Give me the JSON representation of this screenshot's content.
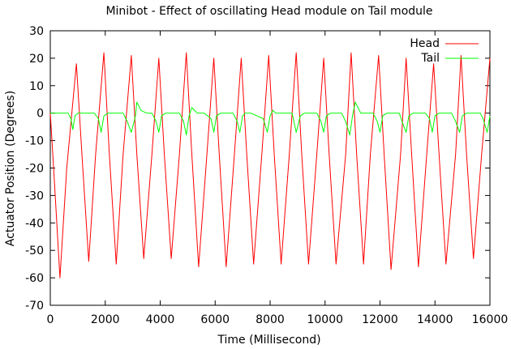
{
  "chart_data": {
    "type": "line",
    "title": "Minibot - Effect of oscillating Head module on Tail module",
    "xlabel": "Time (Millisecond)",
    "ylabel": "Actuator Position (Degrees)",
    "xlim": [
      0,
      16000
    ],
    "ylim": [
      -70,
      30
    ],
    "x_ticks": [
      0,
      2000,
      4000,
      6000,
      8000,
      10000,
      12000,
      14000,
      16000
    ],
    "y_ticks": [
      -70,
      -60,
      -50,
      -40,
      -30,
      -20,
      -10,
      0,
      10,
      20,
      30
    ],
    "grid": false,
    "legend_position": "top-right",
    "series": [
      {
        "name": "Head",
        "color": "#ff0000",
        "x": [
          0,
          150,
          350,
          600,
          950,
          1150,
          1400,
          1650,
          1950,
          2150,
          2400,
          2650,
          2950,
          3150,
          3400,
          3700,
          3950,
          4150,
          4400,
          4700,
          4950,
          5150,
          5400,
          5700,
          5950,
          6150,
          6400,
          6700,
          6950,
          7150,
          7400,
          7700,
          7950,
          8150,
          8400,
          8700,
          8950,
          9150,
          9400,
          9700,
          9950,
          10150,
          10400,
          10750,
          10950,
          11150,
          11400,
          11650,
          11950,
          12150,
          12400,
          12750,
          12950,
          13150,
          13400,
          13700,
          13950,
          14150,
          14400,
          14750,
          14950,
          15150,
          15400,
          15700,
          16000
        ],
        "values": [
          0,
          -25,
          -60,
          -20,
          18,
          -15,
          -54,
          -15,
          22,
          -15,
          -55,
          -15,
          21,
          -15,
          -53,
          -15,
          20,
          -15,
          -53,
          -15,
          22,
          -15,
          -56,
          -15,
          20,
          -15,
          -56,
          -15,
          20,
          -15,
          -55,
          -15,
          21,
          -15,
          -55,
          -15,
          22,
          -15,
          -55,
          -15,
          20,
          -15,
          -55,
          -15,
          22,
          -15,
          -55,
          -15,
          21,
          -15,
          -57,
          -15,
          20,
          -15,
          -56,
          -15,
          18,
          -15,
          -55,
          -15,
          21,
          -15,
          -53,
          -15,
          20
        ]
      },
      {
        "name": "Tail",
        "color": "#00ff00",
        "x": [
          0,
          650,
          750,
          820,
          900,
          1000,
          1150,
          1600,
          1750,
          1850,
          1950,
          2100,
          2650,
          2800,
          2950,
          3100,
          3150,
          3300,
          3500,
          3700,
          3850,
          3950,
          4050,
          4200,
          4700,
          4850,
          4950,
          5050,
          5150,
          5350,
          5600,
          5850,
          5950,
          6050,
          6200,
          6650,
          6800,
          6900,
          7000,
          7100,
          7300,
          7750,
          7900,
          8000,
          8100,
          8200,
          8400,
          8800,
          8950,
          9100,
          9250,
          9700,
          9850,
          9950,
          10050,
          10200,
          10600,
          10750,
          10900,
          11000,
          11100,
          11300,
          11750,
          11900,
          12000,
          12100,
          12250,
          12700,
          12800,
          12950,
          13050,
          13200,
          13650,
          13800,
          13900,
          14000,
          14150,
          14600,
          14750,
          14900,
          15000,
          15150,
          15650,
          15750,
          15900,
          16000
        ],
        "values": [
          0,
          0,
          -2,
          -6,
          -1,
          0,
          0,
          0,
          -2,
          -7,
          -1,
          0,
          0,
          -3,
          -7,
          -1,
          4,
          1,
          0,
          0,
          -3,
          -7,
          -1,
          0,
          0,
          -3,
          -8,
          -1,
          2,
          0,
          0,
          -2,
          -7,
          -1,
          0,
          0,
          -3,
          -7,
          -1,
          0,
          0,
          -2,
          -7,
          -1,
          1,
          0,
          0,
          0,
          -7,
          -1,
          0,
          0,
          -3,
          -7,
          -1,
          0,
          0,
          -3,
          -8,
          -1,
          4,
          0,
          0,
          -3,
          -7,
          -1,
          0,
          0,
          -3,
          -7,
          -1,
          0,
          0,
          -2,
          -7,
          -1,
          0,
          0,
          -3,
          -7,
          -1,
          0,
          0,
          -2,
          -7,
          -1
        ]
      }
    ]
  }
}
